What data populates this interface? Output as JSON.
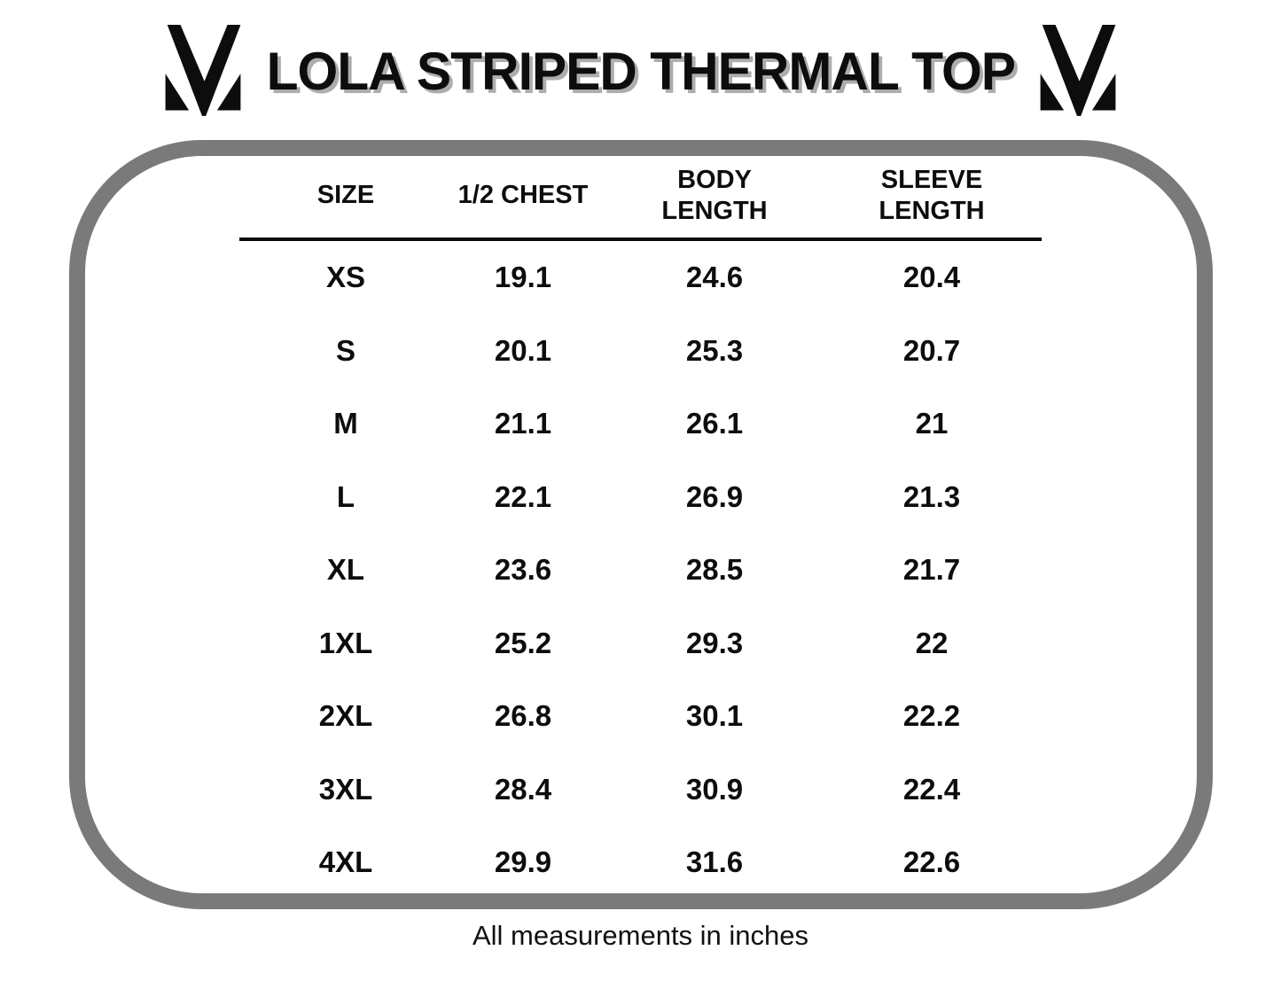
{
  "page": {
    "title": "LOLA STRIPED THERMAL TOP",
    "footer_note": "All measurements in inches",
    "logo": "brand-m-mark",
    "colors": {
      "background": "#ffffff",
      "text": "#0d0d0d",
      "frame_border": "#7a7a7a",
      "title_shadow": "#a8a8a8"
    }
  },
  "chart_data": {
    "type": "table",
    "title": "LOLA STRIPED THERMAL TOP",
    "units": "inches",
    "footnote": "All measurements in inches",
    "columns": [
      "SIZE",
      "1/2 CHEST",
      "BODY LENGTH",
      "SLEEVE LENGTH"
    ],
    "rows": [
      {
        "size": "XS",
        "half_chest": "19.1",
        "body_length": "24.6",
        "sleeve_length": "20.4"
      },
      {
        "size": "S",
        "half_chest": "20.1",
        "body_length": "25.3",
        "sleeve_length": "20.7"
      },
      {
        "size": "M",
        "half_chest": "21.1",
        "body_length": "26.1",
        "sleeve_length": "21"
      },
      {
        "size": "L",
        "half_chest": "22.1",
        "body_length": "26.9",
        "sleeve_length": "21.3"
      },
      {
        "size": "XL",
        "half_chest": "23.6",
        "body_length": "28.5",
        "sleeve_length": "21.7"
      },
      {
        "size": "1XL",
        "half_chest": "25.2",
        "body_length": "29.3",
        "sleeve_length": "22"
      },
      {
        "size": "2XL",
        "half_chest": "26.8",
        "body_length": "30.1",
        "sleeve_length": "22.2"
      },
      {
        "size": "3XL",
        "half_chest": "28.4",
        "body_length": "30.9",
        "sleeve_length": "22.4"
      },
      {
        "size": "4XL",
        "half_chest": "29.9",
        "body_length": "31.6",
        "sleeve_length": "22.6"
      }
    ]
  }
}
